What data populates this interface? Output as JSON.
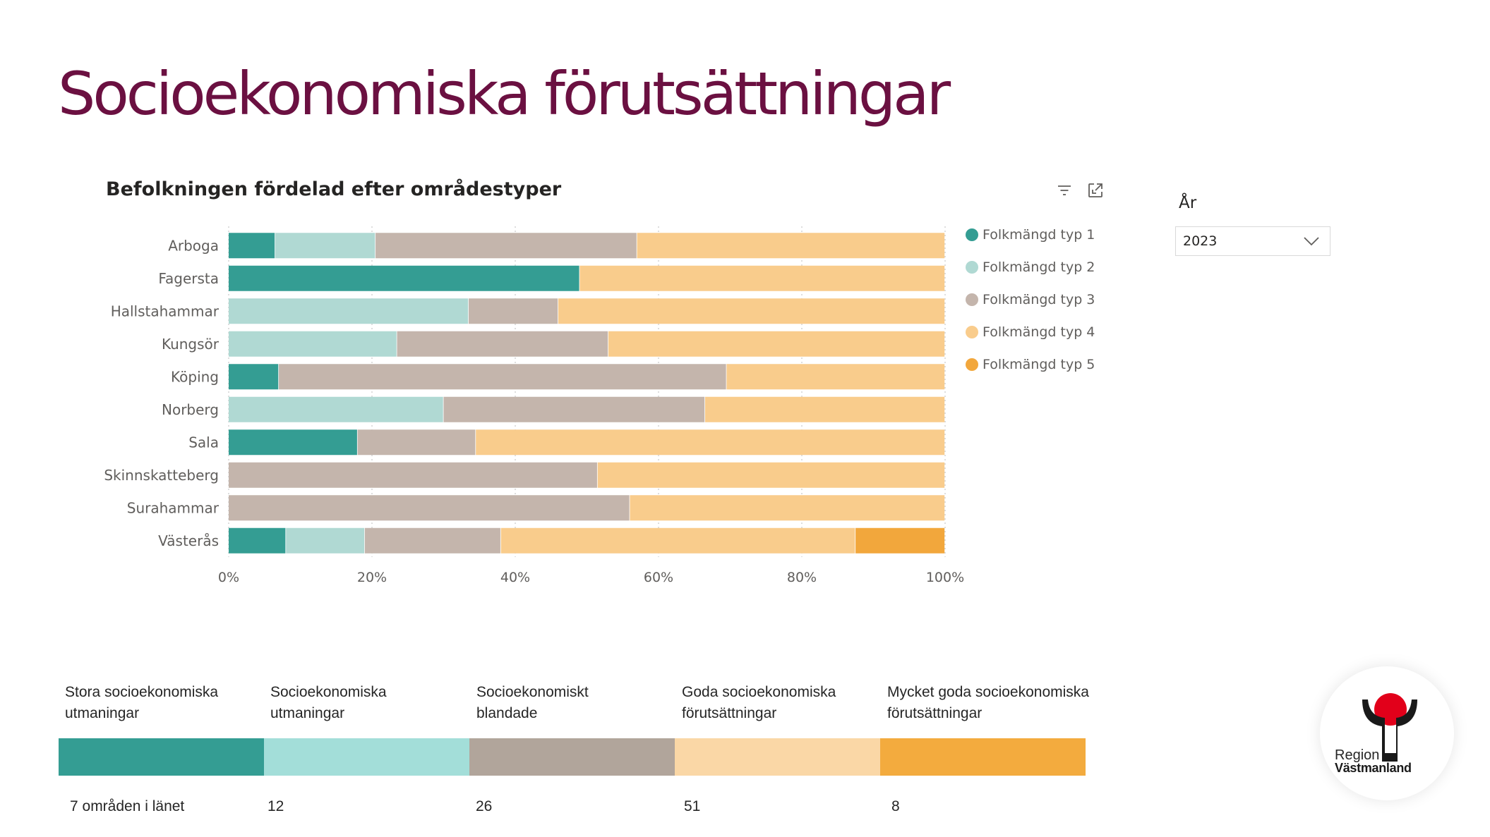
{
  "page": {
    "title": "Socioekonomiska förutsättningar"
  },
  "visual": {
    "title": "Befolkningen fördelad efter områdestyper",
    "icons": [
      "filter-icon",
      "focus-mode-icon"
    ]
  },
  "slicer": {
    "label": "År",
    "value": "2023"
  },
  "chart_data": {
    "type": "bar",
    "orientation": "horizontal",
    "stacking": "100%",
    "title": "Befolkningen fördelad efter områdestyper",
    "xlabel": "",
    "ylabel": "",
    "xlim": [
      0,
      100
    ],
    "x_ticks": [
      "0%",
      "20%",
      "40%",
      "60%",
      "80%",
      "100%"
    ],
    "grid": "vertical dotted",
    "legend_position": "right",
    "categories": [
      "Arboga",
      "Fagersta",
      "Hallstahammar",
      "Kungsör",
      "Köping",
      "Norberg",
      "Sala",
      "Skinnskatteberg",
      "Surahammar",
      "Västerås"
    ],
    "series": [
      {
        "name": "Folkmängd typ 1",
        "color": "#349d93",
        "values": [
          6.5,
          49,
          0,
          0,
          7,
          0,
          18,
          0,
          0,
          8
        ]
      },
      {
        "name": "Folkmängd typ 2",
        "color": "#b0d9d3",
        "values": [
          14,
          0,
          33.5,
          23.5,
          0,
          30,
          0,
          0,
          0,
          11
        ]
      },
      {
        "name": "Folkmängd typ 3",
        "color": "#c4b5ac",
        "values": [
          36.5,
          0,
          12.5,
          29.5,
          62.5,
          36.5,
          16.5,
          51.5,
          56,
          19
        ]
      },
      {
        "name": "Folkmängd typ 4",
        "color": "#f9cc8c",
        "values": [
          43,
          51,
          54,
          47,
          30.5,
          33.5,
          65.5,
          48.5,
          44,
          49.5
        ]
      },
      {
        "name": "Folkmängd typ 5",
        "color": "#f2a73c",
        "values": [
          0,
          0,
          0,
          0,
          0,
          0,
          0,
          0,
          0,
          12.5
        ]
      }
    ]
  },
  "scale": {
    "segments": [
      {
        "label_line1": "Stora socioekonomiska",
        "label_line2": "utmaningar",
        "count": "7 områden i länet",
        "color": "#349d93"
      },
      {
        "label_line1": "Socioekonomiska",
        "label_line2": "utmaningar",
        "count": "12",
        "color": "#a3ded9"
      },
      {
        "label_line1": "Socioekonomiskt",
        "label_line2": "blandade",
        "count": "26",
        "color": "#b1a59b"
      },
      {
        "label_line1": "Goda socioekonomiska",
        "label_line2": "förutsättningar",
        "count": "51",
        "color": "#fad7a6"
      },
      {
        "label_line1": "Mycket goda socioekonomiska",
        "label_line2": "förutsättningar",
        "count": "8",
        "color": "#f3ab3e"
      }
    ]
  },
  "logo": {
    "line1": "Region",
    "line2": "Västmanland",
    "colors": {
      "dot": "#e2001a",
      "mark": "#1a1a1a"
    }
  }
}
